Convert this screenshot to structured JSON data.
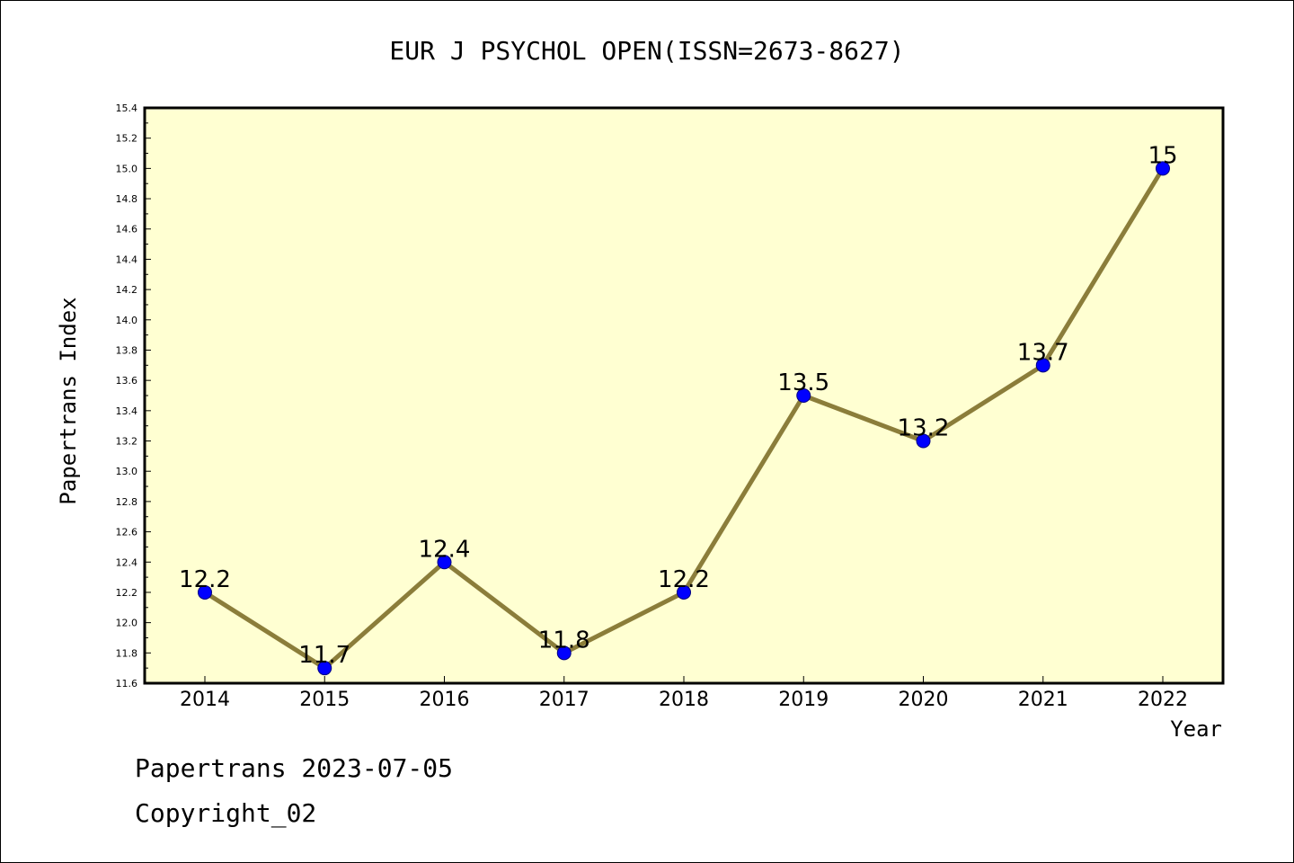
{
  "chart_data": {
    "type": "line",
    "title": "EUR J PSYCHOL OPEN(ISSN=2673-8627)",
    "xlabel": "Year",
    "ylabel": "Papertrans Index",
    "categories": [
      "2014",
      "2015",
      "2016",
      "2017",
      "2018",
      "2019",
      "2020",
      "2021",
      "2022"
    ],
    "series": [
      {
        "values": [
          12.2,
          11.7,
          12.4,
          11.8,
          12.2,
          13.5,
          13.2,
          13.7,
          15.0
        ]
      }
    ],
    "data_labels": [
      "12.2",
      "11.7",
      "12.4",
      "11.8",
      "12.2",
      "13.5",
      "13.2",
      "13.7",
      "15"
    ],
    "ylim": [
      11.6,
      15.4
    ],
    "yticks": [
      "11.6",
      "11.8",
      "12.0",
      "12.2",
      "12.4",
      "12.6",
      "12.8",
      "13.0",
      "13.2",
      "13.4",
      "13.6",
      "13.8",
      "14.0",
      "14.2",
      "14.4",
      "14.6",
      "14.8",
      "15.0",
      "15.2",
      "15.4"
    ],
    "grid": false,
    "colors": {
      "plot_background": "#ffffd2",
      "line": "#8b7d3a",
      "marker_fill": "#0000ff",
      "marker_edge": "#000080"
    }
  },
  "footer": {
    "line1": "Papertrans 2023-07-05",
    "line2": "Copyright_02"
  }
}
